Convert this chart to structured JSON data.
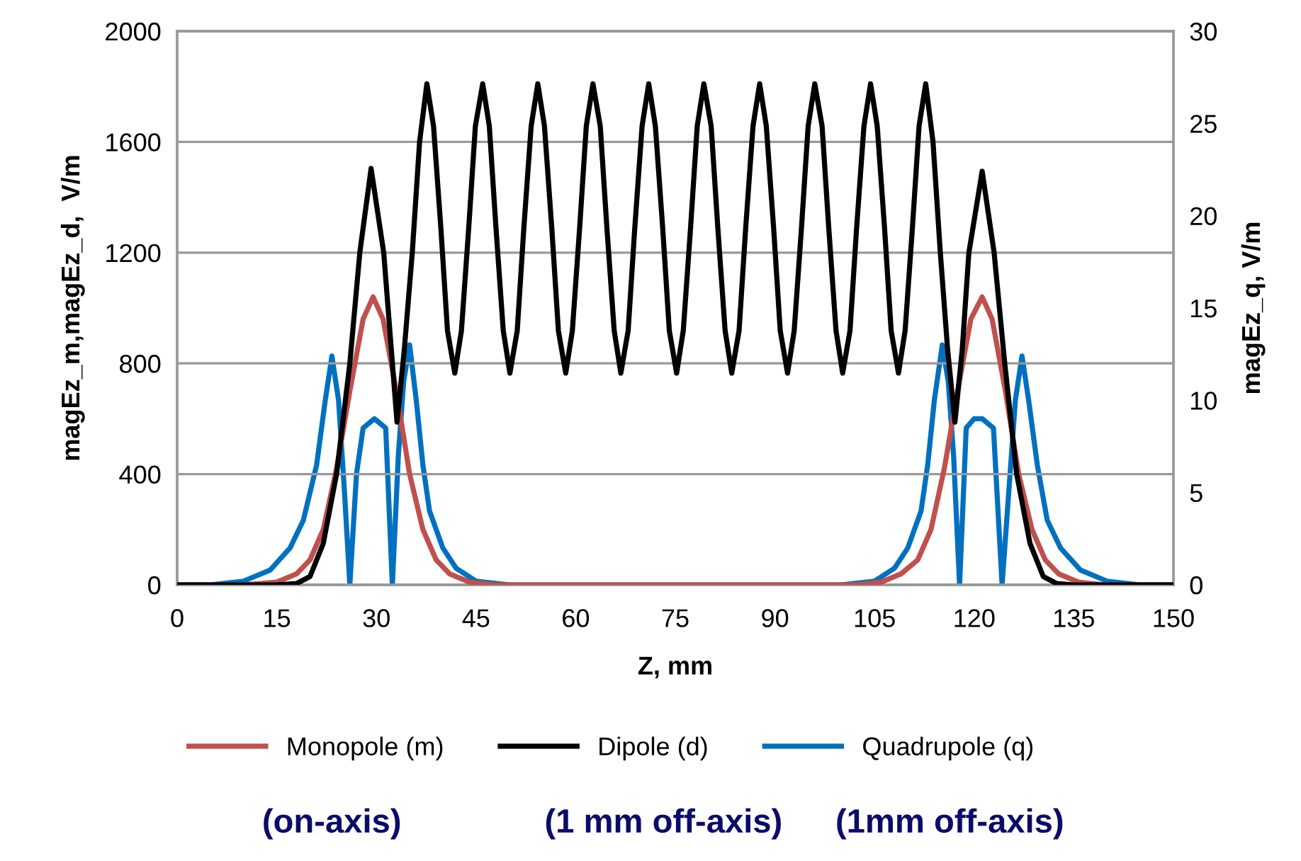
{
  "chart_data": {
    "type": "line",
    "xlabel": "Z, mm",
    "ylabel": "magEz_m,magEz_d,  V/m",
    "y2label": "magEz_q, V/m",
    "xlim": [
      0,
      150
    ],
    "xticks": [
      0,
      15,
      30,
      45,
      60,
      75,
      90,
      105,
      120,
      135,
      150
    ],
    "ylim": [
      0,
      2000
    ],
    "yticks": [
      0,
      400,
      800,
      1200,
      1600,
      2000
    ],
    "y2lim": [
      0,
      30
    ],
    "y2ticks": [
      0,
      5,
      10,
      15,
      20,
      25,
      30
    ],
    "grid": "y",
    "legend": "bottom",
    "marker": "none",
    "line_style": "solid",
    "annotations": [
      "(on-axis)",
      "(1 mm off-axis)",
      "(1mm off-axis)"
    ],
    "series": [
      {
        "name": "Monopole (m)",
        "color": "#c0504d",
        "x": [
          0,
          10,
          15,
          18,
          20,
          22,
          24,
          26,
          28,
          29.5,
          31,
          33,
          35,
          37,
          39,
          41,
          44,
          48,
          100,
          102,
          106,
          109,
          111.5,
          113.5,
          115.5,
          117.5,
          119.5,
          121.2,
          122.7,
          124.7,
          126.7,
          128.7,
          130.7,
          132.7,
          135.7,
          139.7,
          150
        ],
        "values": [
          0,
          0,
          10,
          40,
          90,
          200,
          420,
          700,
          960,
          1040,
          960,
          700,
          400,
          200,
          90,
          40,
          10,
          0,
          0,
          0,
          10,
          40,
          90,
          200,
          420,
          700,
          960,
          1040,
          960,
          700,
          400,
          200,
          90,
          40,
          10,
          0,
          0
        ]
      },
      {
        "name": "Dipole (d)",
        "color": "#000000",
        "x": [
          0,
          15,
          18,
          20,
          22,
          24,
          26,
          27.5,
          29.2,
          31.1,
          33.1,
          34.2,
          35.4,
          36.5,
          37.6,
          38.6,
          39.7,
          40.7,
          41.8,
          42.8,
          43.9,
          44.9,
          46.0,
          47.0,
          48.0,
          49.1,
          50.1,
          51.2,
          52.2,
          53.3,
          54.3,
          55.3,
          56.4,
          57.4,
          58.5,
          59.5,
          60.6,
          61.6,
          62.6,
          63.7,
          64.7,
          65.8,
          66.8,
          67.9,
          68.9,
          70.0,
          71.0,
          72.0,
          73.1,
          74.1,
          75.2,
          76.2,
          77.3,
          78.3,
          79.3,
          80.4,
          81.4,
          82.5,
          83.5,
          84.6,
          85.6,
          86.7,
          87.7,
          88.7,
          89.8,
          90.8,
          91.9,
          92.9,
          94.0,
          95.0,
          96.0,
          97.1,
          98.1,
          99.2,
          100.2,
          101.3,
          102.3,
          103.4,
          104.4,
          105.4,
          106.5,
          107.5,
          108.6,
          109.6,
          110.7,
          111.7,
          112.7,
          113.8,
          114.9,
          116.0,
          117.1,
          118.2,
          119.2,
          121.2,
          123.0,
          124.6,
          126.4,
          128.4,
          130.4,
          132.4,
          135,
          150
        ],
        "values": [
          0,
          0,
          5,
          30,
          150,
          400,
          800,
          1200,
          1504,
          1200,
          588,
          850,
          1200,
          1600,
          1810,
          1657,
          1290,
          918,
          765,
          918,
          1290,
          1657,
          1810,
          1657,
          1290,
          918,
          765,
          918,
          1290,
          1657,
          1810,
          1657,
          1290,
          918,
          765,
          918,
          1290,
          1657,
          1810,
          1657,
          1290,
          918,
          765,
          918,
          1290,
          1657,
          1810,
          1657,
          1290,
          918,
          765,
          918,
          1290,
          1657,
          1810,
          1657,
          1290,
          918,
          765,
          918,
          1290,
          1657,
          1810,
          1657,
          1290,
          918,
          765,
          918,
          1290,
          1657,
          1810,
          1657,
          1290,
          918,
          765,
          918,
          1290,
          1657,
          1810,
          1657,
          1290,
          918,
          765,
          918,
          1290,
          1657,
          1810,
          1600,
          1200,
          850,
          588,
          850,
          1200,
          1494,
          1200,
          800,
          400,
          150,
          30,
          5,
          0,
          0
        ]
      },
      {
        "name": "Quadrupole (q)",
        "color": "#0070c0",
        "axis": "y2",
        "x": [
          0,
          5,
          10,
          14,
          17,
          19,
          21,
          22.3,
          23.3,
          24.3,
          25.2,
          26.0,
          27.0,
          28.0,
          29.7,
          31.4,
          32.4,
          33.3,
          34.1,
          35.0,
          36.0,
          37.0,
          38.0,
          40.0,
          42.0,
          45.0,
          50.0,
          100,
          105,
          108,
          110,
          112,
          113,
          114,
          115.2,
          116.1,
          116.9,
          117.8,
          118.8,
          120.0,
          121.2,
          122.9,
          124.2,
          125.2,
          126.2,
          127.2,
          128.2,
          129.5,
          131,
          133,
          136,
          140,
          145,
          150
        ],
        "values": [
          0,
          0,
          0.2,
          0.8,
          2,
          3.5,
          6.5,
          10,
          12.4,
          10,
          5,
          0,
          6,
          8.5,
          9,
          8.5,
          0,
          7,
          11,
          13,
          10,
          6.5,
          4,
          2,
          0.9,
          0.2,
          0,
          0,
          0.2,
          0.9,
          2,
          4,
          6.5,
          10,
          13,
          11,
          7,
          0,
          8.5,
          9,
          9,
          8.5,
          0,
          5,
          10,
          12.4,
          10,
          6.5,
          3.5,
          2,
          0.8,
          0.2,
          0,
          0
        ]
      }
    ]
  }
}
